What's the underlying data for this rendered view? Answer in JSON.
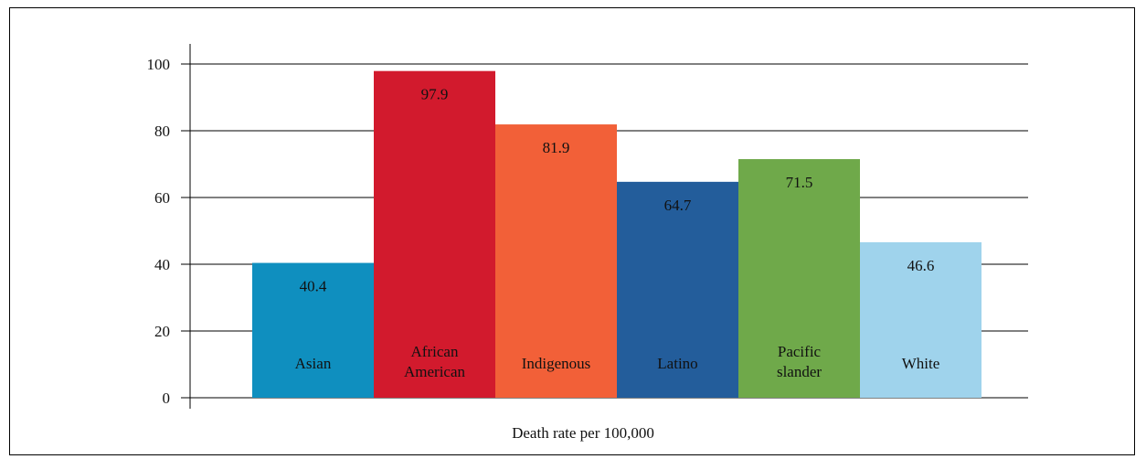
{
  "chart_data": {
    "type": "bar",
    "title": "",
    "xlabel": "Death rate per 100,000",
    "ylabel": "",
    "ylim": [
      0,
      100
    ],
    "yticks": [
      0,
      20,
      40,
      60,
      80,
      100
    ],
    "grid": true,
    "categories": [
      "Asian",
      "African American",
      "Indigenous",
      "Latino",
      "Pacific slander",
      "White"
    ],
    "category_lines": [
      [
        "Asian"
      ],
      [
        "African",
        "American"
      ],
      [
        "Indigenous"
      ],
      [
        "Latino"
      ],
      [
        "Pacific",
        "slander"
      ],
      [
        "White"
      ]
    ],
    "values": [
      40.4,
      97.9,
      81.9,
      64.7,
      71.5,
      46.6
    ],
    "value_labels": [
      "40.4",
      "97.9",
      "81.9",
      "64.7",
      "71.5",
      "46.6"
    ],
    "colors": [
      "#0f8fbf",
      "#d21a2d",
      "#f26038",
      "#235d9b",
      "#6fa94a",
      "#9fd3ec"
    ]
  }
}
